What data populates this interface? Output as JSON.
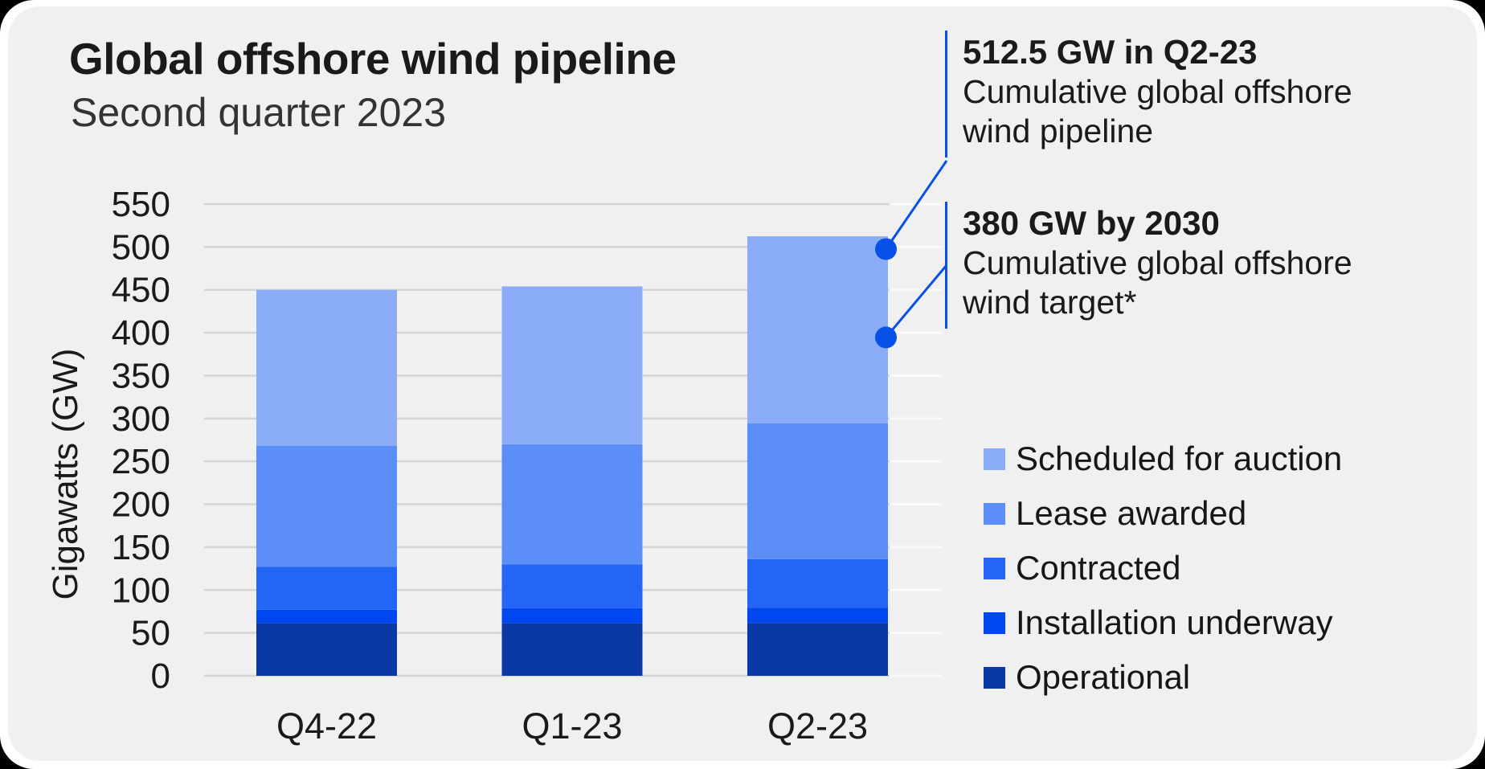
{
  "frame": {
    "outer_background": "#000000",
    "window_background": "#ffffff",
    "card_background": "#f0f0f1"
  },
  "header": {
    "title": "Global offshore wind pipeline",
    "subtitle": "Second quarter 2023"
  },
  "annotations": [
    {
      "heading": "512.5 GW in Q2-23",
      "line1": "Cumulative global offshore",
      "line2": "wind pipeline",
      "value_gw": 512.5
    },
    {
      "heading": "380 GW by 2030",
      "line1": "Cumulative global offshore",
      "line2": "wind target*",
      "value_gw": 380
    }
  ],
  "legend": {
    "items": [
      {
        "label": "Scheduled for auction",
        "color": "#8BACF7"
      },
      {
        "label": "Lease awarded",
        "color": "#5B8EF7"
      },
      {
        "label": "Contracted",
        "color": "#2365F4"
      },
      {
        "label": "Installation underway",
        "color": "#0147EF"
      },
      {
        "label": "Operational",
        "color": "#0A38A4"
      }
    ]
  },
  "chart_data": {
    "type": "bar",
    "stacked": true,
    "title": "Global offshore wind pipeline",
    "subtitle": "Second quarter 2023",
    "categories": [
      "Q4-22",
      "Q1-23",
      "Q2-23"
    ],
    "series": [
      {
        "name": "Operational",
        "color": "#0A38A4",
        "values": [
          61,
          61,
          61.5
        ]
      },
      {
        "name": "Installation underway",
        "color": "#0147EF",
        "values": [
          16,
          18,
          18
        ]
      },
      {
        "name": "Contracted",
        "color": "#2365F4",
        "values": [
          50,
          51,
          56.5
        ]
      },
      {
        "name": "Lease awarded",
        "color": "#5B8EF7",
        "values": [
          141,
          140,
          158.5
        ]
      },
      {
        "name": "Scheduled for auction",
        "color": "#8BACF7",
        "values": [
          182,
          184,
          218
        ]
      }
    ],
    "totals": [
      450,
      454,
      512.5
    ],
    "xlabel": "",
    "ylabel": "Gigawatts (GW)",
    "ylim": [
      0,
      550
    ],
    "ytick_step": 50,
    "yticks": [
      0,
      50,
      100,
      150,
      200,
      250,
      300,
      350,
      400,
      450,
      500,
      550
    ],
    "grid": true,
    "legend_position": "right",
    "markers": [
      {
        "name": "cumulative-pipeline-marker",
        "gw": 512.5
      },
      {
        "name": "2030-target-marker",
        "gw": 380
      }
    ]
  },
  "colors": {
    "accent_blue": "#0750E8",
    "gridline": "#d4d4d4",
    "gridline_light": "#fafafa",
    "text": "#1a1a1a",
    "subtitle_text": "#333333"
  }
}
